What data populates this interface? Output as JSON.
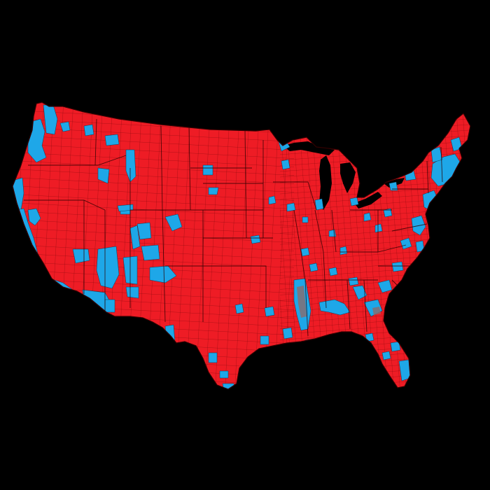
{
  "map": {
    "background_color": "#000000",
    "colors": {
      "republican": "#ee1c25",
      "democrat": "#1ea7e8",
      "county_border": "#4a0000"
    },
    "legend": null
  }
}
